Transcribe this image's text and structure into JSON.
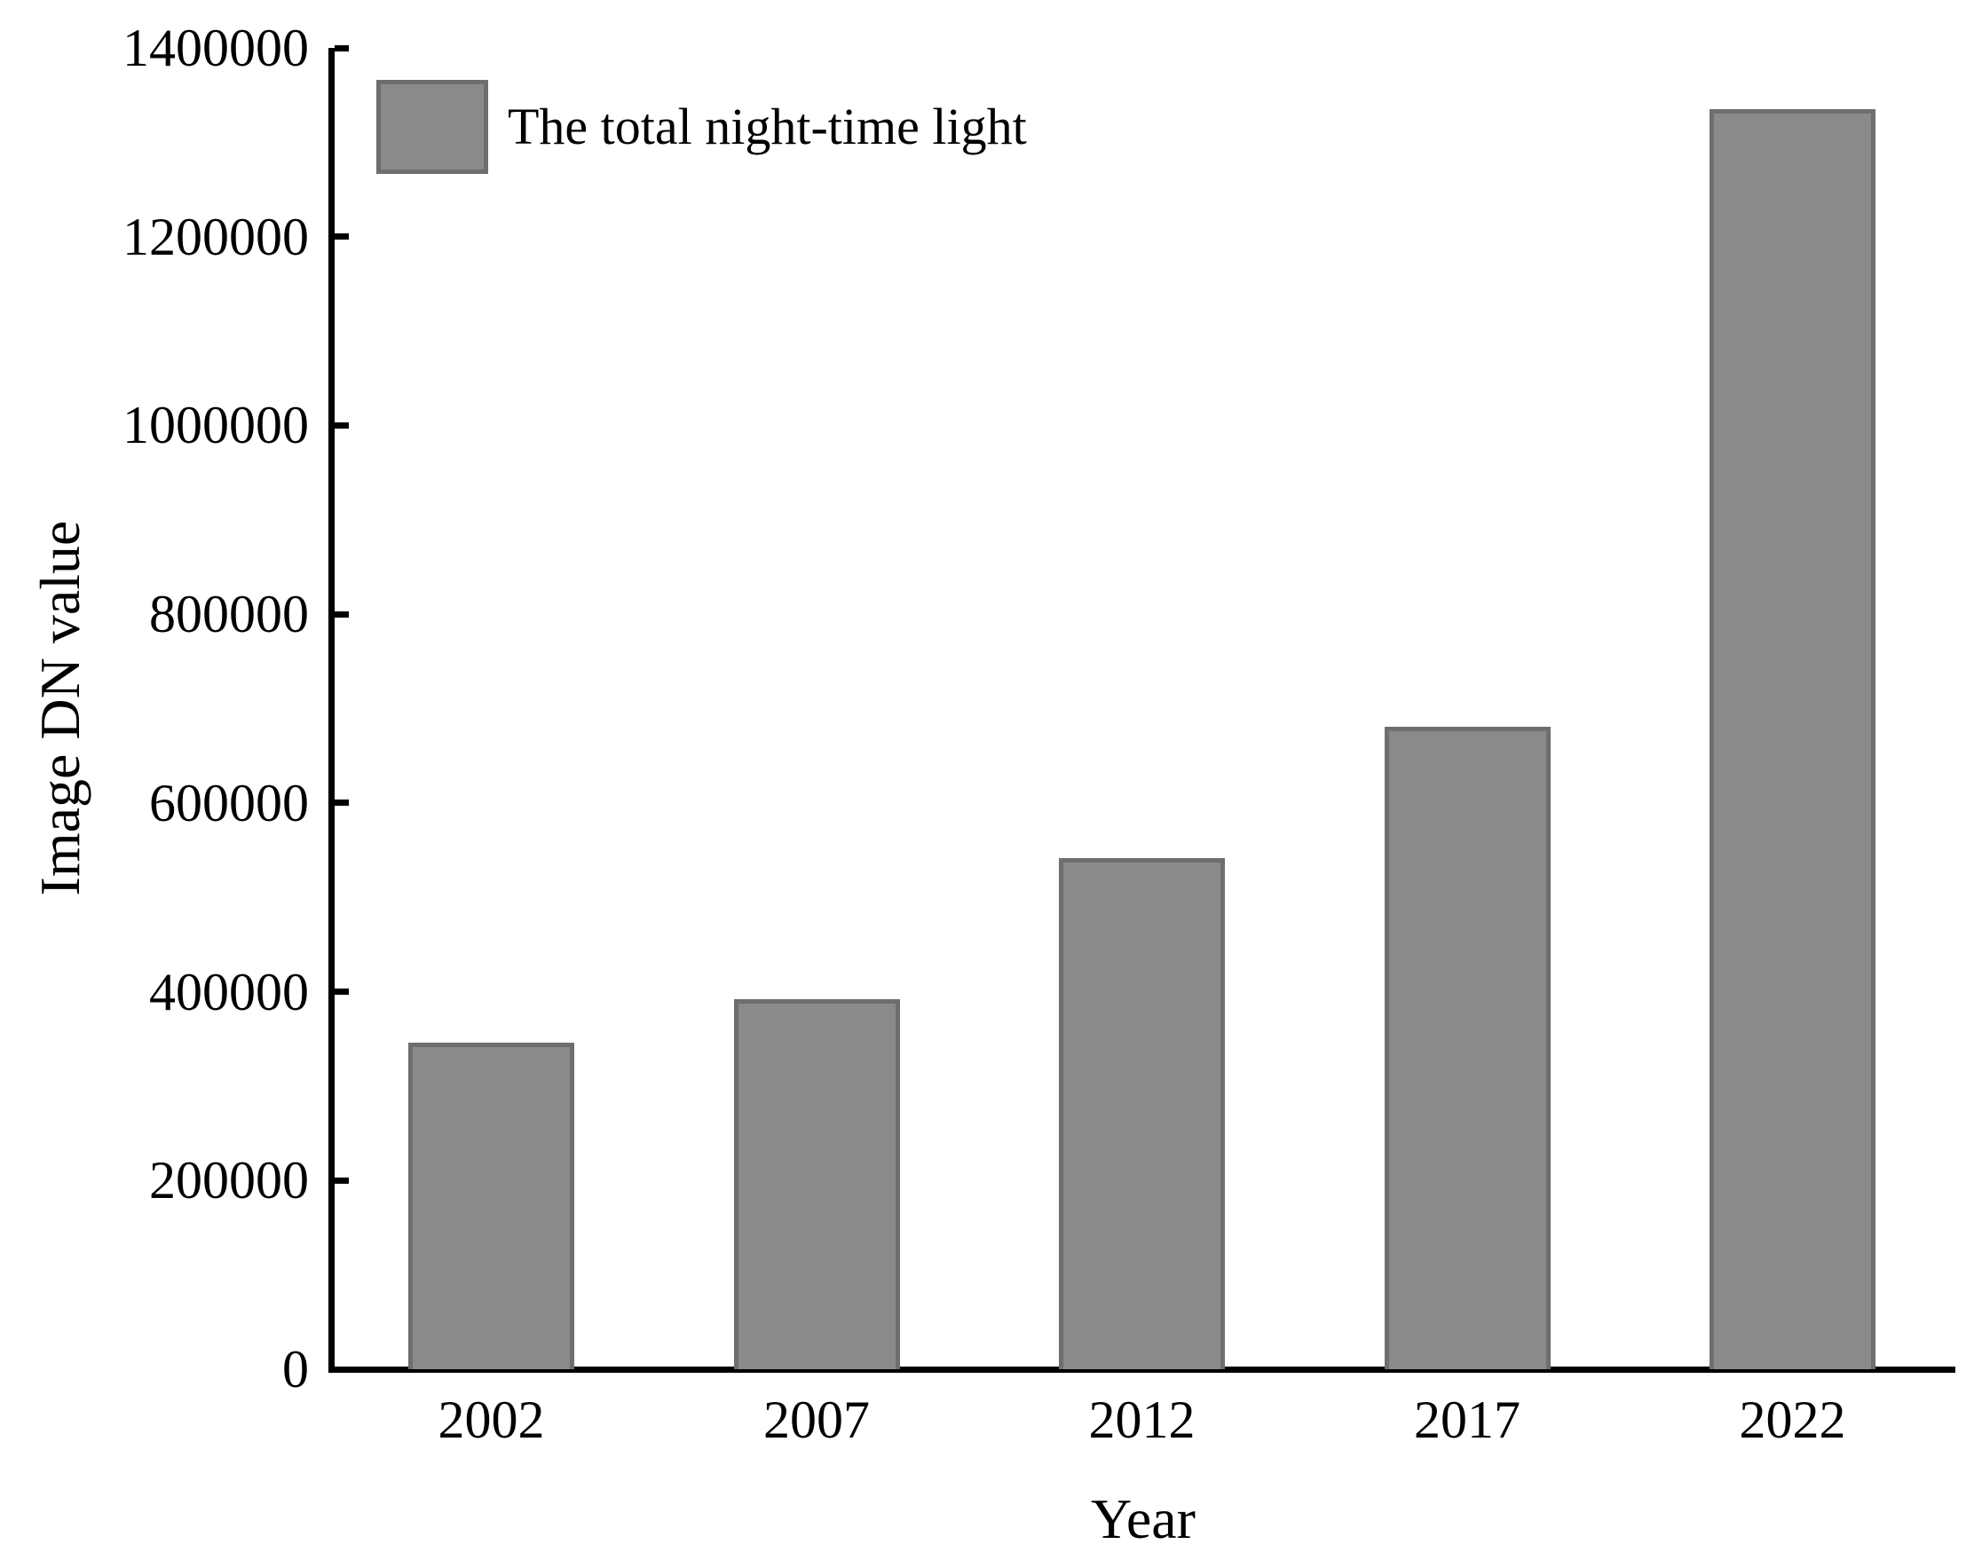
{
  "chart_data": {
    "type": "bar",
    "title": "",
    "categories": [
      "2002",
      "2007",
      "2012",
      "2017",
      "2022"
    ],
    "values": [
      346000,
      392000,
      542000,
      681000,
      1335000
    ],
    "series_name": "The total night-time light",
    "xlabel": "Year",
    "ylabel": "Image DN value",
    "ylim": [
      0,
      1400000
    ],
    "ytick_step": 200000,
    "ytick_labels": [
      "0",
      "200000",
      "400000",
      "600000",
      "800000",
      "1000000",
      "1200000",
      "1400000"
    ],
    "grid": false,
    "legend_position": "upper-left",
    "bar_color": "#8a8a8a",
    "bar_edge_color": "#6e6e6e",
    "axis_color": "#000000",
    "background_color": "#ffffff"
  }
}
